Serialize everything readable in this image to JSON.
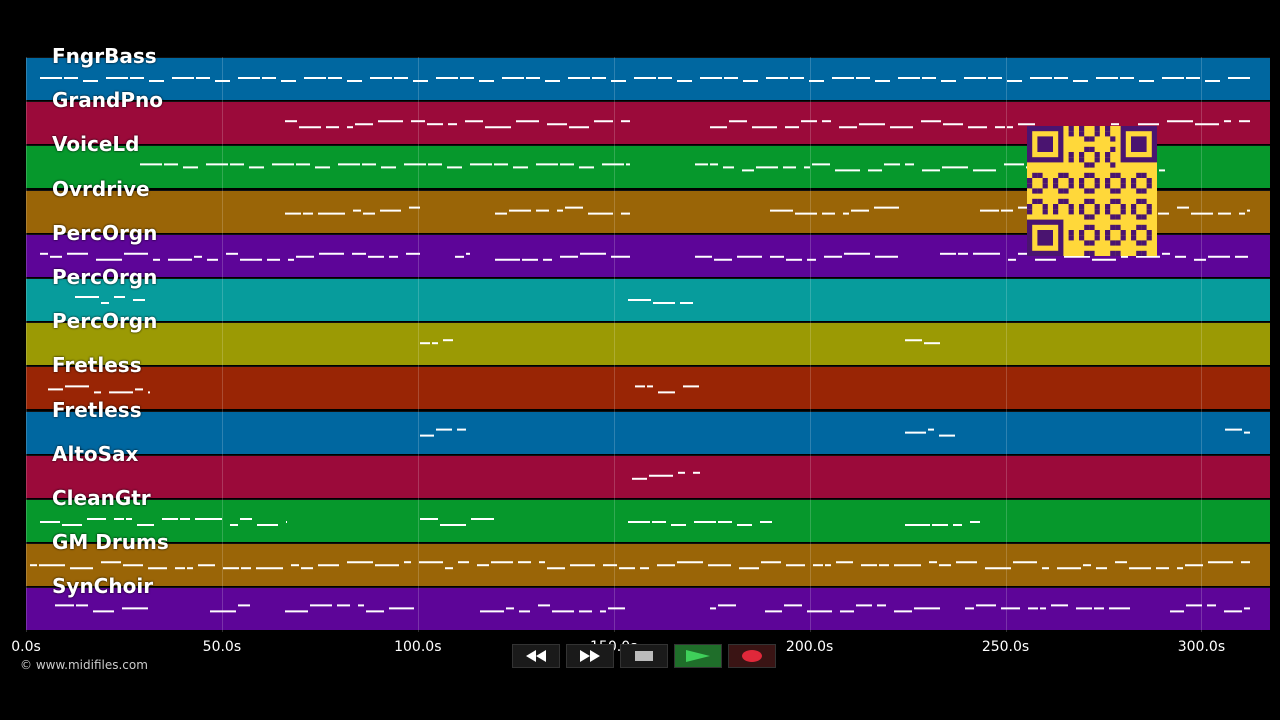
{
  "tracks": [
    {
      "name": "FngrBass",
      "color": "#0067a0"
    },
    {
      "name": "GrandPno",
      "color": "#9b0a3a"
    },
    {
      "name": "VoiceLd",
      "color": "#06982c"
    },
    {
      "name": "Ovrdrive",
      "color": "#9a6507"
    },
    {
      "name": "PercOrgn",
      "color": "#5d0598"
    },
    {
      "name": "PercOrgn",
      "color": "#079c9c"
    },
    {
      "name": "PercOrgn",
      "color": "#9b9a04"
    },
    {
      "name": "Fretless",
      "color": "#992505"
    },
    {
      "name": "Fretless",
      "color": "#0067a0"
    },
    {
      "name": "AltoSax",
      "color": "#9b0a3a"
    },
    {
      "name": "CleanGtr",
      "color": "#06982c"
    },
    {
      "name": "GM Drums",
      "color": "#9a6507"
    },
    {
      "name": "SynChoir",
      "color": "#5d0598"
    }
  ],
  "timeline": {
    "ticks": [
      "0.0s",
      "50.0s",
      "100.0s",
      "150.0s",
      "200.0s",
      "250.0s",
      "300.0s"
    ],
    "tick_seconds": [
      0,
      50,
      100,
      150,
      200,
      250,
      300
    ],
    "total_seconds": 317.5
  },
  "copyright": "© www.midifiles.com",
  "transport": {
    "rewind_icon": "rewind-icon",
    "fastforward_icon": "fast-forward-icon",
    "stop_icon": "stop-icon",
    "play_icon": "play-icon",
    "record_icon": "record-icon"
  },
  "qr_code": {
    "color": "#ffd83a",
    "dark_color": "#4a1470"
  }
}
